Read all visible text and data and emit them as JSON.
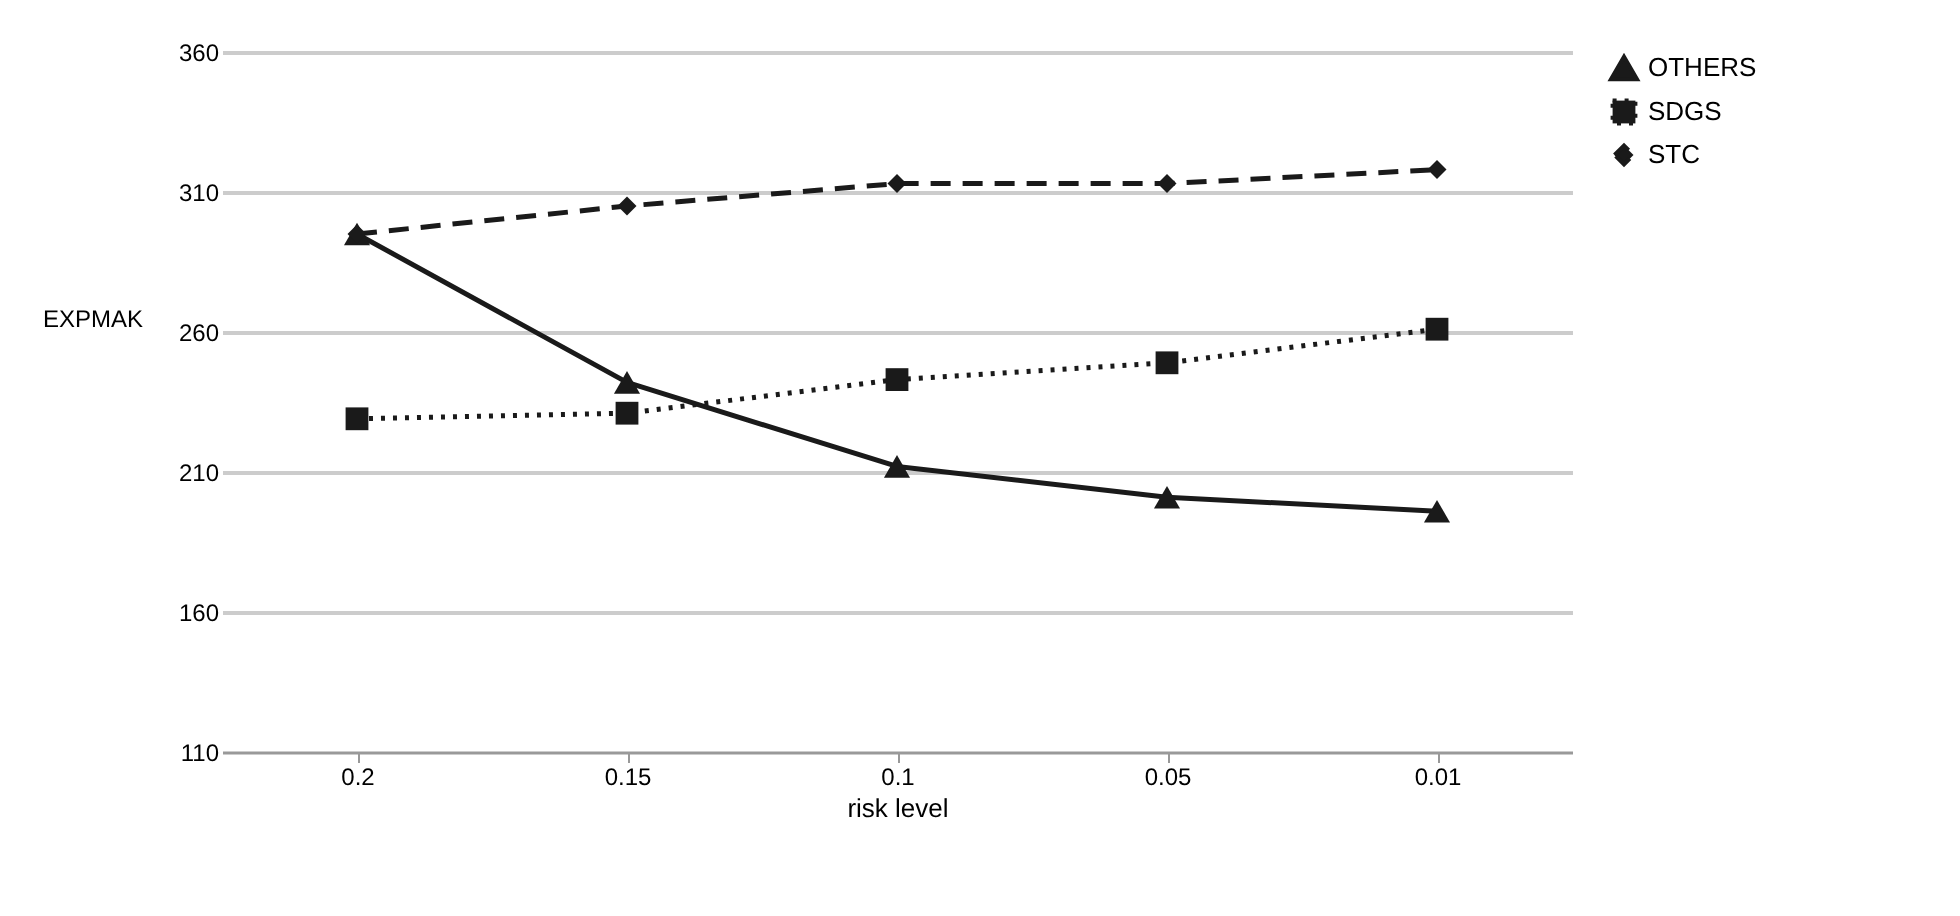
{
  "chart_data": {
    "type": "line",
    "xlabel": "risk level",
    "ylabel": "EXPMAK",
    "categories": [
      "0.2",
      "0.15",
      "0.1",
      "0.05",
      "0.01"
    ],
    "series": [
      {
        "name": "OTHERS",
        "color": "#1a1a1a",
        "marker": "triangle",
        "line_style": "solid",
        "values": [
          295,
          242,
          212,
          201,
          196
        ]
      },
      {
        "name": "SDGS",
        "color": "#1a1a1a",
        "marker": "square",
        "line_style": "dotted",
        "values": [
          229,
          231,
          243,
          249,
          261
        ]
      },
      {
        "name": "STC",
        "color": "#1a1a1a",
        "marker": "diamond",
        "line_style": "dashed",
        "values": [
          295,
          305,
          313,
          313,
          318
        ]
      }
    ],
    "ylim": [
      110,
      360
    ],
    "yticks": [
      110,
      160,
      210,
      260,
      310,
      360
    ],
    "grid": "y",
    "legend": "right"
  }
}
